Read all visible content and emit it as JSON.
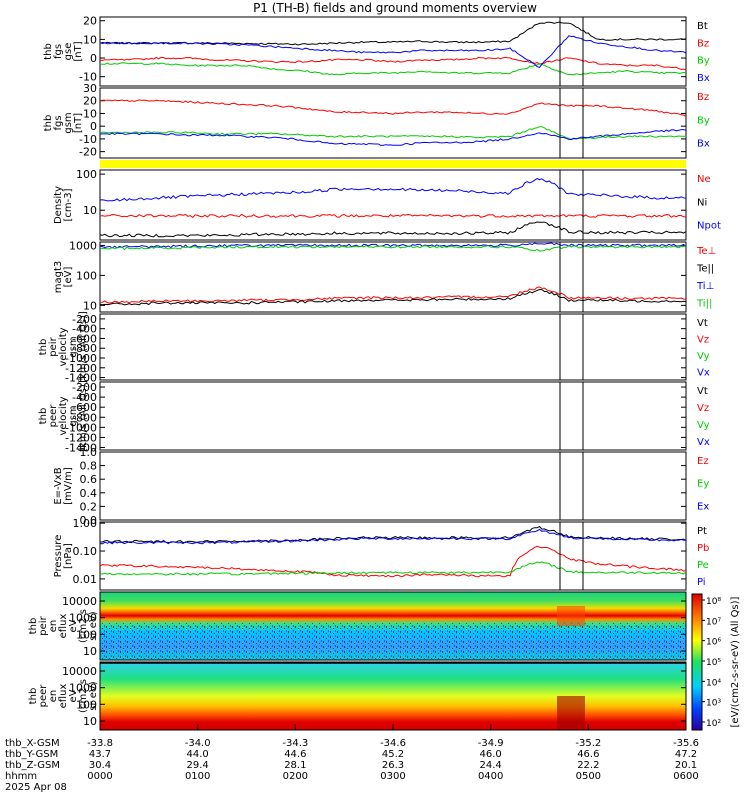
{
  "title": "P1 (TH-B) fields and ground moments overview",
  "chart_data": {
    "type": "line",
    "time_axis": {
      "rows": [
        {
          "label": "thb_X-GSM",
          "values": [
            "-33.8",
            "-34.0",
            "-34.3",
            "-34.6",
            "-34.9",
            "-35.2",
            "-35.6"
          ]
        },
        {
          "label": "thb_Y-GSM",
          "values": [
            "43.7",
            "44.0",
            "44.6",
            "45.2",
            "46.0",
            "46.6",
            "47.2"
          ]
        },
        {
          "label": "thb_Z-GSM",
          "values": [
            "30.4",
            "29.4",
            "28.1",
            "26.3",
            "24.4",
            "22.2",
            "20.1"
          ]
        },
        {
          "label": "hhmm",
          "values": [
            "0000",
            "0100",
            "0200",
            "0300",
            "0400",
            "0500",
            "0600"
          ]
        }
      ],
      "date": "2025 Apr 08"
    },
    "panels": [
      {
        "id": "fgs_gse",
        "ylabel": [
          "thb",
          "fgs",
          "gse",
          "[nT]"
        ],
        "yticks": [
          "20",
          "10",
          "0",
          "-10"
        ],
        "ylim": [
          -15,
          22
        ],
        "series": [
          {
            "name": "Bt",
            "color": "#000000",
            "values": [
              8,
              8,
              8,
              8,
              8,
              7.8,
              7.6,
              7.4,
              8,
              8.5,
              8.5,
              9,
              8.5,
              8.5,
              9,
              19,
              19,
              10,
              10,
              10,
              10
            ]
          },
          {
            "name": "Bz",
            "color": "#ff0000",
            "values": [
              -1,
              -1,
              0,
              0,
              -1,
              -1.5,
              -2,
              -2,
              -1,
              -1,
              -2,
              -1,
              -1,
              0,
              0,
              -3,
              0,
              -3,
              -4,
              -4,
              -6
            ]
          },
          {
            "name": "By",
            "color": "#00cc00",
            "values": [
              -3,
              -3,
              -3,
              -4,
              -4,
              -4,
              -6,
              -7,
              -9,
              -8,
              -8,
              -7,
              -8,
              -8,
              -8,
              -3,
              -9,
              -8,
              -7,
              -8,
              -8
            ]
          },
          {
            "name": "Bx",
            "color": "#0000ff",
            "values": [
              8,
              8,
              8,
              8,
              7.5,
              7,
              6,
              5,
              4,
              3,
              3,
              4,
              4,
              4,
              5,
              -5,
              12,
              8,
              6,
              4,
              3
            ]
          }
        ]
      },
      {
        "id": "fgs_gsm",
        "ylabel": [
          "thb",
          "fgs",
          "gsm",
          "[nT]"
        ],
        "yticks": [
          "30",
          "20",
          "10",
          "0",
          "-10",
          "-20"
        ],
        "ylim": [
          -25,
          30
        ],
        "series": [
          {
            "name": "Bz",
            "color": "#ff0000",
            "values": [
              20,
              20,
              20,
              19,
              18,
              17,
              16,
              14,
              11,
              11,
              10,
              11,
              11,
              10,
              10,
              18,
              16,
              16,
              14,
              12,
              8
            ]
          },
          {
            "name": "By",
            "color": "#00cc00",
            "values": [
              -5,
              -5,
              -5,
              -5,
              -6,
              -6,
              -6,
              -7,
              -8,
              -8,
              -8,
              -8,
              -8,
              -9,
              -8,
              0,
              -10,
              -9,
              -8,
              -8,
              -8
            ]
          },
          {
            "name": "Bx",
            "color": "#0000ff",
            "values": [
              -6,
              -6,
              -6,
              -7,
              -7,
              -8,
              -9,
              -11,
              -14,
              -14,
              -15,
              -13,
              -13,
              -12,
              -10,
              -5,
              -10,
              -8,
              -6,
              -4,
              -3
            ]
          }
        ]
      },
      {
        "id": "density",
        "ylabel": [
          "Density",
          "[cm-3]"
        ],
        "yticks": [
          "100",
          "10"
        ],
        "log": true,
        "ylim": [
          1.5,
          130
        ],
        "series": [
          {
            "name": "Ne",
            "color": "#ff0000",
            "values": [
              7,
              7,
              7,
              7,
              7,
              7,
              7,
              7,
              7,
              7,
              7,
              7,
              7,
              7,
              7,
              7,
              7,
              7,
              7,
              7,
              7
            ]
          },
          {
            "name": "Ni",
            "color": "#000000",
            "values": [
              2,
              2,
              2,
              2,
              2,
              2.1,
              2.2,
              2.2,
              2.3,
              2.3,
              2.3,
              2.3,
              2.3,
              2.3,
              2.4,
              5,
              2.5,
              2.4,
              2.4,
              2.4,
              2.4
            ]
          },
          {
            "name": "Npot",
            "color": "#0000ff",
            "values": [
              18,
              20,
              22,
              24,
              26,
              28,
              30,
              32,
              38,
              40,
              38,
              36,
              35,
              32,
              30,
              75,
              28,
              26,
              24,
              22,
              22
            ]
          }
        ]
      },
      {
        "id": "temperature",
        "ylabel": [
          "magt3",
          "[eV]"
        ],
        "yticks": [
          "1000",
          "100",
          "10"
        ],
        "log": true,
        "ylim": [
          6,
          1300
        ],
        "series": [
          {
            "name": "Te⊥",
            "color": "#ff0000",
            "values": [
              13,
              13,
              14,
              14,
              14,
              15,
              15,
              16,
              17,
              18,
              18,
              18,
              19,
              19,
              20,
              40,
              18,
              18,
              17,
              17,
              17
            ]
          },
          {
            "name": "Te||",
            "color": "#000000",
            "values": [
              11,
              11,
              12,
              12,
              12,
              12,
              13,
              13,
              14,
              15,
              15,
              15,
              16,
              16,
              17,
              32,
              15,
              15,
              14,
              14,
              14
            ]
          },
          {
            "name": "Ti⊥",
            "color": "#0000ff",
            "values": [
              900,
              900,
              920,
              950,
              980,
              1000,
              1000,
              1000,
              1000,
              1000,
              1000,
              1000,
              1000,
              1000,
              1000,
              1200,
              1000,
              1000,
              1000,
              1000,
              1000
            ]
          },
          {
            "name": "Ti||",
            "color": "#00cc00",
            "values": [
              800,
              800,
              820,
              850,
              880,
              900,
              900,
              900,
              900,
              900,
              900,
              900,
              900,
              900,
              900,
              650,
              900,
              900,
              900,
              900,
              900
            ]
          }
        ]
      },
      {
        "id": "peir_velocity",
        "ylabel": [
          "thb",
          "peir",
          "velocity",
          "gsm",
          "[km/s (All Qs)]"
        ],
        "yticks": [
          "-200",
          "-400",
          "-600",
          "-800",
          "-1000",
          "-1200",
          "-1400"
        ],
        "ylim": [
          -1450,
          -100
        ],
        "series": [
          {
            "name": "Vt",
            "color": "#000000",
            "values": []
          },
          {
            "name": "Vz",
            "color": "#ff0000",
            "values": []
          },
          {
            "name": "Vy",
            "color": "#00cc00",
            "values": []
          },
          {
            "name": "Vx",
            "color": "#0000ff",
            "values": []
          }
        ]
      },
      {
        "id": "peer_velocity",
        "ylabel": [
          "thb",
          "peer",
          "velocity",
          "gsm",
          "[km/s (All Qs)]"
        ],
        "yticks": [
          "-200",
          "-400",
          "-600",
          "-800",
          "-1000",
          "-1200",
          "-1400"
        ],
        "ylim": [
          -1450,
          -100
        ],
        "series": [
          {
            "name": "Vt",
            "color": "#000000",
            "values": []
          },
          {
            "name": "Vz",
            "color": "#ff0000",
            "values": []
          },
          {
            "name": "Vy",
            "color": "#00cc00",
            "values": []
          },
          {
            "name": "Vx",
            "color": "#0000ff",
            "values": []
          }
        ]
      },
      {
        "id": "efield",
        "ylabel": [
          "E=-VxB",
          "[mV/m]"
        ],
        "yticks": [
          "1.0",
          "0.8",
          "0.6",
          "0.4",
          "0.2",
          "0.0"
        ],
        "ylim": [
          0,
          1
        ],
        "series": [
          {
            "name": "Ez",
            "color": "#ff0000",
            "values": []
          },
          {
            "name": "Ey",
            "color": "#00cc00",
            "values": []
          },
          {
            "name": "Ex",
            "color": "#0000ff",
            "values": []
          }
        ]
      },
      {
        "id": "pressure",
        "ylabel": [
          "Pressure",
          "[nPa]"
        ],
        "yticks": [
          "1.00",
          "0.10",
          "0.01"
        ],
        "log": true,
        "ylim": [
          0.004,
          1.1
        ],
        "series": [
          {
            "name": "Pt",
            "color": "#000000",
            "values": [
              0.22,
              0.22,
              0.22,
              0.22,
              0.22,
              0.23,
              0.24,
              0.25,
              0.28,
              0.3,
              0.3,
              0.3,
              0.3,
              0.3,
              0.3,
              0.7,
              0.32,
              0.3,
              0.28,
              0.27,
              0.26
            ]
          },
          {
            "name": "Pb",
            "color": "#ff0000",
            "values": [
              0.03,
              0.03,
              0.028,
              0.026,
              0.025,
              0.022,
              0.02,
              0.018,
              0.014,
              0.013,
              0.013,
              0.014,
              0.014,
              0.013,
              0.013,
              0.15,
              0.05,
              0.035,
              0.028,
              0.024,
              0.02
            ]
          },
          {
            "name": "Pe",
            "color": "#00cc00",
            "values": [
              0.015,
              0.015,
              0.015,
              0.015,
              0.015,
              0.015,
              0.016,
              0.016,
              0.016,
              0.017,
              0.017,
              0.017,
              0.017,
              0.017,
              0.018,
              0.04,
              0.018,
              0.017,
              0.017,
              0.017,
              0.016
            ]
          },
          {
            "name": "Pi",
            "color": "#0000ff",
            "values": [
              0.2,
              0.2,
              0.2,
              0.2,
              0.2,
              0.21,
              0.22,
              0.24,
              0.26,
              0.28,
              0.28,
              0.28,
              0.28,
              0.28,
              0.28,
              0.55,
              0.3,
              0.28,
              0.26,
              0.25,
              0.24
            ]
          }
        ]
      },
      {
        "id": "peir_spectrogram",
        "type": "heatmap",
        "ylabel": [
          "thb",
          "peir",
          "en",
          "eflux",
          "eV",
          "(cm2 s",
          "sr eV)"
        ],
        "yticks": [
          "10000",
          "1000",
          "100",
          "10"
        ]
      },
      {
        "id": "peer_spectrogram",
        "type": "heatmap",
        "ylabel": [
          "thb",
          "peer",
          "en",
          "eflux",
          "eV",
          "(cm2 s",
          "sr eV)"
        ],
        "yticks": [
          "10000",
          "1000",
          "100",
          "10"
        ]
      }
    ],
    "colorbar": {
      "ticks": [
        "10⁸",
        "10⁷",
        "10⁶",
        "10⁵",
        "10⁴",
        "10³",
        "10²"
      ],
      "label": "[eV/(cm2-s-sr-eV) (All Qs)]"
    }
  },
  "colors": {
    "bt": "#000000",
    "bz": "#ff0000",
    "by": "#00cc00",
    "bx": "#0000ff",
    "mode_bar": "#ffff00"
  }
}
